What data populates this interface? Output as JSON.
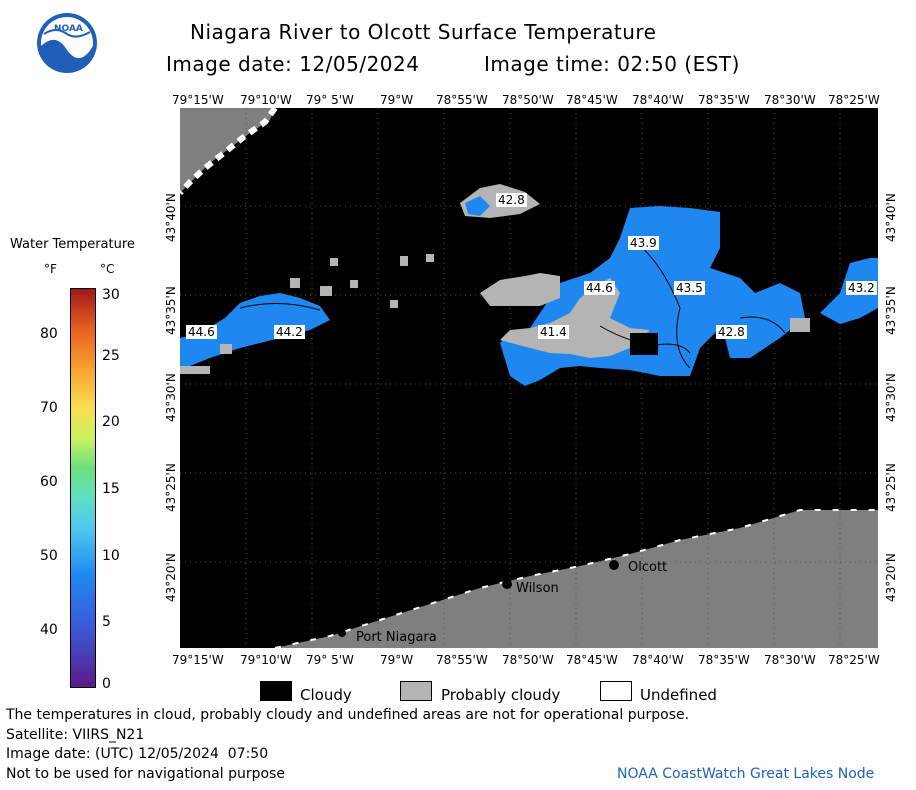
{
  "header": {
    "title": "Niagara River to Olcott Surface Temperature",
    "image_date_label": "Image date: 12/05/2024",
    "image_time_label": "Image time: 02:50 (EST)"
  },
  "logo": {
    "text": "NOAA"
  },
  "map": {
    "lon_ticks": [
      "79°15'W",
      "79°10'W",
      "79° 5'W",
      "79°W",
      "78°55'W",
      "78°50'W",
      "78°45'W",
      "78°40'W",
      "78°35'W",
      "78°30'W",
      "78°25'W"
    ],
    "lat_ticks": [
      "43°40'N",
      "43°35'N",
      "43°30'N",
      "43°25'N",
      "43°20'N"
    ],
    "temperature_labels": [
      "42.8",
      "43.9",
      "44.6",
      "43.5",
      "41.4",
      "44.6",
      "44.2",
      "42.8",
      "43.2"
    ],
    "towns": [
      "Olcott",
      "Wilson",
      "Port Niagara"
    ]
  },
  "colorbar": {
    "title": "Water Temperature",
    "unit_f": "°F",
    "unit_c": "°C",
    "f_ticks": [
      "80",
      "70",
      "60",
      "50",
      "40"
    ],
    "c_ticks": [
      "30",
      "25",
      "20",
      "15",
      "10",
      "5",
      "0"
    ]
  },
  "legend": {
    "cloudy": "Cloudy",
    "probably_cloudy": "Probably cloudy",
    "undefined": "Undefined"
  },
  "footer": {
    "note": "The temperatures in cloud, probably cloudy and undefined areas are not for operational purpose.",
    "satellite": "Satellite: VIIRS_N21",
    "utc_date": "Image date: (UTC) 12/05/2024  07:50",
    "nav_warning": "Not to be used for navigational purpose",
    "credit": "NOAA CoastWatch Great Lakes Node"
  },
  "colors": {
    "water_blue": "#1e88f0",
    "probably_cloudy": "#b4b4b4",
    "land": "#7f7f7f",
    "cloud": "#000000",
    "credit_blue": "#2060c0"
  }
}
